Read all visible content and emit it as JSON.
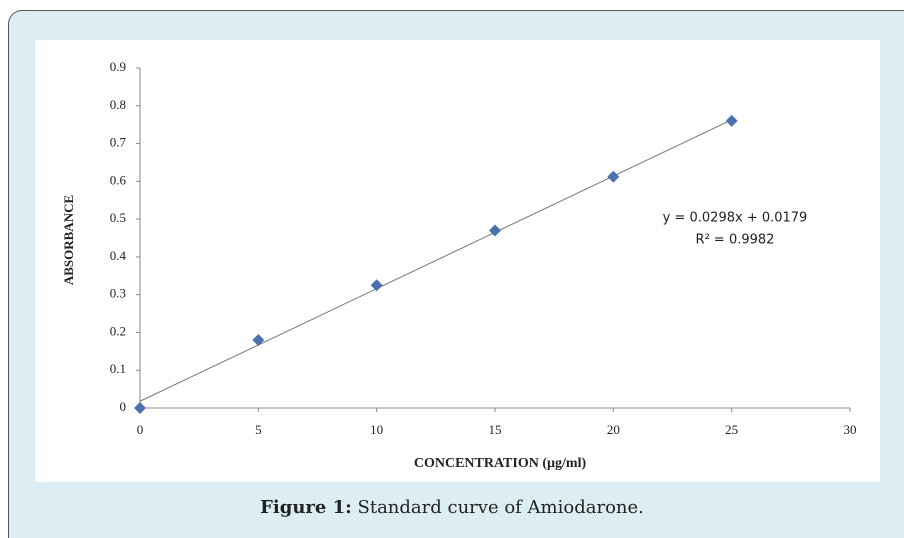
{
  "chart_data": {
    "type": "scatter",
    "x_label": "CONCENTRATION (µg/ml)",
    "y_label": "ABSORBANCE",
    "x": [
      0,
      5,
      10,
      15,
      20,
      25
    ],
    "series": [
      {
        "name": "Amiodarone",
        "color": "#4a72b0",
        "values": [
          0,
          0.18,
          0.325,
          0.47,
          0.612,
          0.76
        ]
      }
    ],
    "trendline": {
      "slope": 0.0298,
      "intercept": 0.0179,
      "equation": "y = 0.0298x + 0.0179",
      "r2": "R² = 0.9982",
      "color": "#777"
    },
    "xlim": [
      0,
      30
    ],
    "xticks": [
      0,
      5,
      10,
      15,
      20,
      25,
      30
    ],
    "ylim": [
      0,
      0.9
    ],
    "yticks": [
      0,
      0.1,
      0.2,
      0.3,
      0.4,
      0.5,
      0.6,
      0.7,
      0.8,
      0.9
    ],
    "legend": false,
    "grid": false
  },
  "caption": {
    "label": "Figure 1:",
    "text": "Standard curve of Amiodarone."
  }
}
